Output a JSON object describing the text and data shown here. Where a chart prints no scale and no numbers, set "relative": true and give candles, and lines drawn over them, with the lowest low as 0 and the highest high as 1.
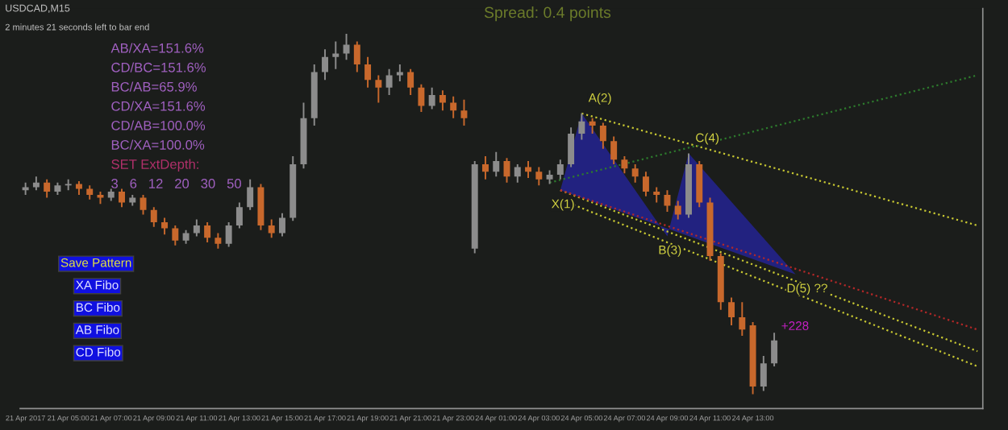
{
  "chart_data": {
    "type": "candlestick",
    "relative": true,
    "title": "USDCAD,M15",
    "subtitle": "Spread: 0.4 points",
    "categories": [
      "21 Apr 2017",
      null,
      null,
      null,
      "21 Apr 05:00",
      null,
      null,
      null,
      "21 Apr 07:00",
      null,
      null,
      null,
      "21 Apr 09:00",
      null,
      null,
      null,
      "21 Apr 11:00",
      null,
      null,
      null,
      "21 Apr 13:00",
      null,
      null,
      null,
      "21 Apr 15:00",
      null,
      null,
      null,
      "21 Apr 17:00",
      null,
      null,
      null,
      "21 Apr 19:00",
      null,
      null,
      null,
      "21 Apr 21:00",
      null,
      null,
      null,
      "21 Apr 23:00",
      null,
      null,
      null,
      "24 Apr 01:00",
      null,
      null,
      null,
      "24 Apr 03:00",
      null,
      null,
      null,
      "24 Apr 05:00",
      null,
      null,
      null,
      "24 Apr 07:00",
      null,
      null,
      null,
      "24 Apr 09:00",
      null,
      null,
      null,
      "24 Apr 11:00",
      null,
      null,
      null,
      "24 Apr 13:00",
      null,
      null,
      null,
      null,
      null,
      null,
      null,
      null,
      null,
      null,
      null,
      null,
      null,
      null,
      null,
      null,
      null,
      null,
      null,
      null,
      null
    ],
    "ohlc": [
      [
        0.566,
        0.587,
        0.553,
        0.574
      ],
      [
        0.574,
        0.604,
        0.566,
        0.587
      ],
      [
        0.587,
        0.596,
        0.545,
        0.562
      ],
      [
        0.562,
        0.587,
        0.553,
        0.579
      ],
      [
        0.579,
        0.596,
        0.566,
        0.583
      ],
      [
        0.583,
        0.591,
        0.553,
        0.57
      ],
      [
        0.57,
        0.579,
        0.54,
        0.553
      ],
      [
        0.553,
        0.562,
        0.528,
        0.545
      ],
      [
        0.545,
        0.57,
        0.536,
        0.562
      ],
      [
        0.562,
        0.57,
        0.519,
        0.532
      ],
      [
        0.532,
        0.553,
        0.523,
        0.545
      ],
      [
        0.545,
        0.553,
        0.498,
        0.511
      ],
      [
        0.511,
        0.519,
        0.464,
        0.477
      ],
      [
        0.477,
        0.489,
        0.443,
        0.46
      ],
      [
        0.46,
        0.468,
        0.413,
        0.426
      ],
      [
        0.426,
        0.455,
        0.417,
        0.447
      ],
      [
        0.447,
        0.485,
        0.438,
        0.468
      ],
      [
        0.468,
        0.477,
        0.421,
        0.434
      ],
      [
        0.434,
        0.447,
        0.404,
        0.417
      ],
      [
        0.417,
        0.477,
        0.409,
        0.468
      ],
      [
        0.468,
        0.532,
        0.46,
        0.519
      ],
      [
        0.519,
        0.596,
        0.511,
        0.574
      ],
      [
        0.574,
        0.583,
        0.455,
        0.468
      ],
      [
        0.468,
        0.485,
        0.434,
        0.447
      ],
      [
        0.447,
        0.502,
        0.438,
        0.489
      ],
      [
        0.489,
        0.66,
        0.481,
        0.638
      ],
      [
        0.638,
        0.809,
        0.626,
        0.766
      ],
      [
        0.766,
        0.915,
        0.745,
        0.894
      ],
      [
        0.894,
        0.957,
        0.872,
        0.936
      ],
      [
        0.936,
        0.979,
        0.902,
        0.945
      ],
      [
        0.945,
        1.0,
        0.928,
        0.97
      ],
      [
        0.97,
        0.979,
        0.894,
        0.915
      ],
      [
        0.915,
        0.936,
        0.851,
        0.872
      ],
      [
        0.872,
        0.885,
        0.809,
        0.851
      ],
      [
        0.851,
        0.902,
        0.83,
        0.885
      ],
      [
        0.885,
        0.915,
        0.868,
        0.894
      ],
      [
        0.894,
        0.902,
        0.83,
        0.851
      ],
      [
        0.851,
        0.86,
        0.783,
        0.8
      ],
      [
        0.8,
        0.851,
        0.791,
        0.83
      ],
      [
        0.83,
        0.843,
        0.787,
        0.809
      ],
      [
        0.809,
        0.826,
        0.766,
        0.787
      ],
      [
        0.787,
        0.817,
        0.745,
        0.766
      ],
      [
        0.404,
        0.647,
        0.391,
        0.638
      ],
      [
        0.638,
        0.66,
        0.596,
        0.617
      ],
      [
        0.617,
        0.672,
        0.604,
        0.647
      ],
      [
        0.647,
        0.655,
        0.587,
        0.604
      ],
      [
        0.604,
        0.638,
        0.587,
        0.63
      ],
      [
        0.63,
        0.647,
        0.6,
        0.617
      ],
      [
        0.617,
        0.63,
        0.579,
        0.596
      ],
      [
        0.596,
        0.621,
        0.583,
        0.609
      ],
      [
        0.609,
        0.651,
        0.596,
        0.638
      ],
      [
        0.638,
        0.74,
        0.63,
        0.723
      ],
      [
        0.723,
        0.779,
        0.706,
        0.757
      ],
      [
        0.757,
        0.766,
        0.723,
        0.745
      ],
      [
        0.745,
        0.753,
        0.681,
        0.702
      ],
      [
        0.702,
        0.715,
        0.638,
        0.651
      ],
      [
        0.651,
        0.66,
        0.613,
        0.626
      ],
      [
        0.626,
        0.638,
        0.587,
        0.604
      ],
      [
        0.604,
        0.617,
        0.549,
        0.562
      ],
      [
        0.562,
        0.574,
        0.532,
        0.553
      ],
      [
        0.553,
        0.566,
        0.506,
        0.523
      ],
      [
        0.523,
        0.536,
        0.485,
        0.498
      ],
      [
        0.498,
        0.668,
        0.489,
        0.638
      ],
      [
        0.638,
        0.647,
        0.519,
        0.532
      ],
      [
        0.532,
        0.545,
        0.37,
        0.383
      ],
      [
        0.383,
        0.391,
        0.234,
        0.255
      ],
      [
        0.255,
        0.268,
        0.191,
        0.213
      ],
      [
        0.213,
        0.255,
        0.162,
        0.179
      ],
      [
        0.191,
        0.2,
        0.0,
        0.021
      ],
      [
        0.021,
        0.106,
        0.009,
        0.085
      ],
      [
        0.085,
        0.17,
        0.077,
        0.149
      ],
      null,
      null,
      null,
      null,
      null,
      null,
      null,
      null,
      null,
      null,
      null,
      null,
      null,
      null,
      null,
      null,
      null,
      null,
      null
    ],
    "colors": [
      "#8c8c8c",
      "#8c8c8c",
      "#c8682c",
      "#8c8c8c",
      "#8c8c8c",
      "#c8682c",
      "#c8682c",
      "#c8682c",
      "#8c8c8c",
      "#c8682c",
      "#8c8c8c",
      "#c8682c",
      "#c8682c",
      "#c8682c",
      "#c8682c",
      "#8c8c8c",
      "#8c8c8c",
      "#c8682c",
      "#c8682c",
      "#8c8c8c",
      "#8c8c8c",
      "#8c8c8c",
      "#c8682c",
      "#c8682c",
      "#8c8c8c",
      "#8c8c8c",
      "#8c8c8c",
      "#8c8c8c",
      "#8c8c8c",
      "#8c8c8c",
      "#8c8c8c",
      "#c8682c",
      "#c8682c",
      "#c8682c",
      "#8c8c8c",
      "#8c8c8c",
      "#c8682c",
      "#c8682c",
      "#8c8c8c",
      "#c8682c",
      "#c8682c",
      "#c8682c",
      "#8c8c8c",
      "#c8682c",
      "#8c8c8c",
      "#c8682c",
      "#8c8c8c",
      "#c8682c",
      "#c8682c",
      "#8c8c8c",
      "#8c8c8c",
      "#8c8c8c",
      "#8c8c8c",
      "#c8682c",
      "#c8682c",
      "#c8682c",
      "#c8682c",
      "#c8682c",
      "#c8682c",
      "#c8682c",
      "#c8682c",
      "#c8682c",
      "#8c8c8c",
      "#c8682c",
      "#c8682c",
      "#c8682c",
      "#c8682c",
      "#c8682c",
      "#c8682c",
      "#8c8c8c",
      "#8c8c8c",
      null,
      null,
      null,
      null,
      null,
      null,
      null,
      null,
      null,
      null,
      null,
      null,
      null,
      null,
      null,
      null,
      null,
      null,
      null
    ],
    "tick_labels": "x",
    "legend": false,
    "grid": false,
    "series": [
      {
        "type": "area",
        "color": "#23238c",
        "values": [
          null,
          null,
          null,
          null,
          null,
          null,
          null,
          null,
          null,
          null,
          null,
          null,
          null,
          null,
          null,
          null,
          null,
          null,
          null,
          null,
          null,
          null,
          null,
          null,
          null,
          null,
          null,
          null,
          null,
          null,
          null,
          null,
          null,
          null,
          null,
          null,
          null,
          null,
          null,
          null,
          null,
          null,
          null,
          null,
          null,
          null,
          null,
          null,
          null,
          null,
          0.566,
          null,
          0.779,
          null,
          null,
          null,
          null,
          null,
          null,
          null,
          0.438,
          null,
          0.668,
          null,
          null,
          null,
          null,
          null,
          null,
          null,
          null,
          null,
          0.332,
          null,
          null,
          null,
          null,
          null,
          null,
          null,
          null,
          null,
          null,
          null,
          null,
          null,
          null,
          null,
          null,
          null
        ]
      },
      {
        "type": "line",
        "color": "#c8c832",
        "line_style": "dotted",
        "values": [
          null,
          null,
          null,
          null,
          null,
          null,
          null,
          null,
          null,
          null,
          null,
          null,
          null,
          null,
          null,
          null,
          null,
          null,
          null,
          null,
          null,
          null,
          null,
          null,
          null,
          null,
          null,
          null,
          null,
          null,
          null,
          null,
          null,
          null,
          null,
          null,
          null,
          null,
          null,
          null,
          null,
          null,
          null,
          null,
          null,
          null,
          null,
          null,
          null,
          null,
          null,
          null,
          0.779,
          null,
          null,
          null,
          null,
          null,
          null,
          null,
          null,
          null,
          null,
          null,
          null,
          null,
          null,
          null,
          null,
          null,
          null,
          null,
          null,
          null,
          null,
          null,
          null,
          null,
          null,
          null,
          null,
          null,
          null,
          null,
          null,
          null,
          null,
          null,
          null,
          0.468
        ]
      },
      {
        "type": "line",
        "color": "#c8c832",
        "line_style": "dotted",
        "values": [
          null,
          null,
          null,
          null,
          null,
          null,
          null,
          null,
          null,
          null,
          null,
          null,
          null,
          null,
          null,
          null,
          null,
          null,
          null,
          null,
          null,
          null,
          null,
          null,
          null,
          null,
          null,
          null,
          null,
          null,
          null,
          null,
          null,
          null,
          null,
          null,
          null,
          null,
          null,
          null,
          null,
          null,
          null,
          null,
          null,
          null,
          null,
          null,
          null,
          null,
          0.566,
          null,
          null,
          null,
          null,
          null,
          null,
          null,
          null,
          null,
          null,
          null,
          null,
          null,
          null,
          null,
          null,
          null,
          null,
          null,
          null,
          null,
          null,
          null,
          null,
          null,
          null,
          null,
          null,
          null,
          null,
          null,
          null,
          null,
          null,
          null,
          null,
          null,
          null,
          0.119
        ]
      },
      {
        "type": "line",
        "color": "#c8c832",
        "line_style": "dotted",
        "values": [
          null,
          null,
          null,
          null,
          null,
          null,
          null,
          null,
          null,
          null,
          null,
          null,
          null,
          null,
          null,
          null,
          null,
          null,
          null,
          null,
          null,
          null,
          null,
          null,
          null,
          null,
          null,
          null,
          null,
          null,
          null,
          null,
          null,
          null,
          null,
          null,
          null,
          null,
          null,
          null,
          null,
          null,
          null,
          null,
          null,
          null,
          null,
          null,
          null,
          null,
          0.54,
          null,
          null,
          null,
          null,
          null,
          null,
          null,
          null,
          null,
          null,
          null,
          null,
          null,
          null,
          null,
          null,
          null,
          null,
          null,
          null,
          null,
          null,
          null,
          null,
          null,
          null,
          null,
          null,
          null,
          null,
          null,
          null,
          null,
          null,
          null,
          null,
          null,
          null,
          0.077
        ]
      },
      {
        "type": "line",
        "color": "#b42828",
        "line_style": "dotted",
        "values": [
          null,
          null,
          null,
          null,
          null,
          null,
          null,
          null,
          null,
          null,
          null,
          null,
          null,
          null,
          null,
          null,
          null,
          null,
          null,
          null,
          null,
          null,
          null,
          null,
          null,
          null,
          null,
          null,
          null,
          null,
          null,
          null,
          null,
          null,
          null,
          null,
          null,
          null,
          null,
          null,
          null,
          null,
          null,
          null,
          null,
          null,
          null,
          null,
          null,
          null,
          0.566,
          null,
          null,
          null,
          null,
          null,
          null,
          null,
          null,
          null,
          null,
          null,
          null,
          null,
          null,
          null,
          null,
          null,
          null,
          null,
          null,
          null,
          null,
          null,
          null,
          null,
          null,
          null,
          null,
          null,
          null,
          null,
          null,
          null,
          null,
          null,
          null,
          null,
          null,
          0.179
        ]
      },
      {
        "type": "line",
        "color": "#2d7a2d",
        "line_style": "dotted",
        "values": [
          null,
          null,
          null,
          null,
          null,
          null,
          null,
          null,
          null,
          null,
          null,
          null,
          null,
          null,
          null,
          null,
          null,
          null,
          null,
          null,
          null,
          null,
          null,
          null,
          null,
          null,
          null,
          null,
          null,
          null,
          null,
          null,
          null,
          null,
          null,
          null,
          null,
          null,
          null,
          null,
          null,
          null,
          null,
          null,
          null,
          null,
          null,
          null,
          null,
          0.587,
          null,
          null,
          null,
          null,
          null,
          null,
          null,
          null,
          null,
          null,
          null,
          null,
          null,
          null,
          null,
          null,
          null,
          null,
          null,
          null,
          null,
          null,
          null,
          null,
          null,
          null,
          null,
          null,
          null,
          null,
          null,
          null,
          null,
          null,
          null,
          null,
          null,
          null,
          null,
          0.885
        ]
      }
    ],
    "annotations": [
      "2 minutes 21 seconds left to bar end",
      "AB/XA=151.6%",
      "CD/BC=151.6%",
      "BC/AB=65.9%",
      "CD/XA=151.6%",
      "CD/AB=100.0%",
      "BC/XA=100.0%",
      "SET ExtDepth:",
      "3   6   12   20   30   50",
      "Save Pattern",
      "XA Fibo",
      "BC Fibo",
      "AB Fibo",
      "CD Fibo",
      "+228",
      {
        "text": "X(1)",
        "y": 0.566
      },
      {
        "text": "A(2)",
        "y": 0.779
      },
      {
        "text": "B(3)",
        "y": 0.438
      },
      {
        "text": "C(4)",
        "y": 0.668
      },
      {
        "text": "D(5) ??",
        "y": 0.332
      }
    ]
  }
}
